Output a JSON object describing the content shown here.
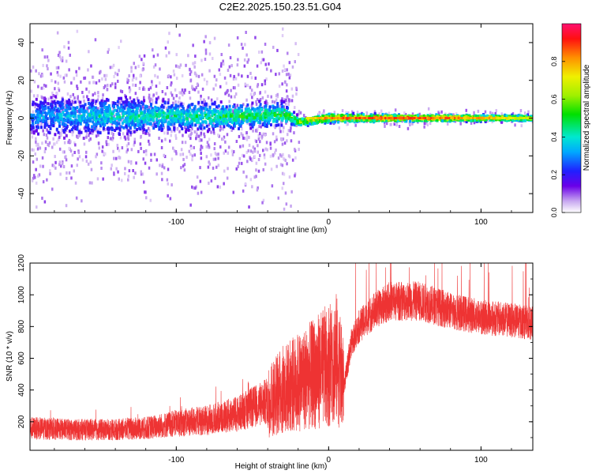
{
  "title": "C2E2.2025.150.23.51.G04",
  "chart_data": [
    {
      "type": "heatmap",
      "xlabel": "Height of straight line (km)",
      "ylabel": "Frequency (Hz)",
      "xlim": [
        -196,
        134
      ],
      "ylim": [
        -50,
        50
      ],
      "xticks": [
        -100,
        0,
        100
      ],
      "yticks": [
        -40,
        -20,
        0,
        20,
        40
      ],
      "colorbar": {
        "label": "Normalized spectral amplitude",
        "range": [
          0,
          1
        ],
        "ticks": [
          "0.0",
          "0.2",
          "0.4",
          "0.6",
          "0.8"
        ]
      },
      "ridge": [
        {
          "x": -196,
          "freq": 1,
          "spread": 10,
          "peak": 0.35
        },
        {
          "x": -150,
          "freq": 1,
          "spread": 9,
          "peak": 0.45
        },
        {
          "x": -100,
          "freq": 1,
          "spread": 7,
          "peak": 0.5
        },
        {
          "x": -60,
          "freq": 1,
          "spread": 6,
          "peak": 0.55
        },
        {
          "x": -30,
          "freq": 2,
          "spread": 5,
          "peak": 0.6
        },
        {
          "x": -20,
          "freq": -2,
          "spread": 2,
          "peak": 0.7
        },
        {
          "x": 0,
          "freq": 0,
          "spread": 2,
          "peak": 0.9
        },
        {
          "x": 50,
          "freq": 0,
          "spread": 1.5,
          "peak": 0.95
        },
        {
          "x": 100,
          "freq": 0,
          "spread": 1.5,
          "peak": 0.85
        },
        {
          "x": 134,
          "freq": 0,
          "spread": 1.5,
          "peak": 0.7
        }
      ]
    },
    {
      "type": "line",
      "xlabel": "Height of straight line (km)",
      "ylabel": "SNR (10 * v/v)",
      "xlim": [
        -196,
        134
      ],
      "ylim": [
        20,
        1200
      ],
      "xticks": [
        -100,
        0,
        100
      ],
      "yticks": [
        200,
        400,
        600,
        800,
        1000,
        1200
      ],
      "series": [
        {
          "color": "#ee3333",
          "x": [
            -196,
            -170,
            -140,
            -120,
            -100,
            -80,
            -60,
            -40,
            -30,
            -20,
            -10,
            0,
            5,
            10,
            15,
            20,
            30,
            40,
            60,
            80,
            100,
            120,
            134
          ],
          "values": [
            160,
            150,
            150,
            160,
            190,
            210,
            250,
            330,
            400,
            450,
            500,
            560,
            600,
            420,
            700,
            800,
            900,
            960,
            960,
            900,
            860,
            840,
            820
          ]
        }
      ]
    }
  ]
}
